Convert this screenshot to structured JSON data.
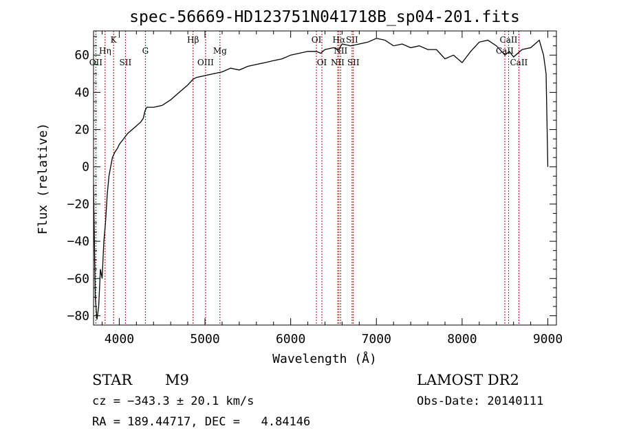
{
  "chart_data": {
    "type": "line",
    "title": "spec-56669-HD123751N041718B_sp04-201.fits",
    "xlabel": "Wavelength (Å)",
    "ylabel": "Flux (relative)",
    "xlim": [
      3700,
      9100
    ],
    "ylim": [
      -85,
      73
    ],
    "x_ticks": [
      4000,
      5000,
      6000,
      7000,
      8000,
      9000
    ],
    "y_ticks": [
      -80,
      -60,
      -40,
      -20,
      0,
      20,
      40,
      60
    ],
    "grid": false,
    "series": [
      {
        "x": [
          3700,
          3720,
          3740,
          3760,
          3780,
          3800,
          3820,
          3840,
          3860,
          3880,
          3900,
          3920,
          3950,
          3980,
          4000,
          4050,
          4100,
          4150,
          4200,
          4250,
          4280,
          4300,
          4320,
          4400,
          4500,
          4600,
          4700,
          4800,
          4860,
          4900,
          5000,
          5100,
          5200,
          5300,
          5400,
          5500,
          5600,
          5700,
          5800,
          5900,
          6000,
          6100,
          6200,
          6300,
          6350,
          6400,
          6500,
          6560,
          6600,
          6700,
          6800,
          6900,
          7000,
          7100,
          7200,
          7300,
          7400,
          7500,
          7600,
          7700,
          7800,
          7900,
          8000,
          8100,
          8200,
          8300,
          8400,
          8500,
          8550,
          8600,
          8700,
          8800,
          8850,
          8900,
          8950,
          8980,
          9000
        ],
        "y": [
          -10,
          -70,
          -82,
          -75,
          -55,
          -60,
          -40,
          -30,
          -15,
          -5,
          0,
          5,
          8,
          10,
          12,
          15,
          18,
          20,
          22,
          24,
          26,
          30,
          32,
          32,
          33,
          36,
          40,
          44,
          47,
          48,
          49,
          50,
          51,
          53,
          52,
          54,
          55,
          56,
          57,
          58,
          60,
          61,
          62,
          62,
          61,
          63,
          64,
          63,
          66,
          65,
          66,
          67,
          69,
          68,
          65,
          66,
          64,
          65,
          63,
          63,
          58,
          60,
          56,
          62,
          67,
          68,
          65,
          60,
          62,
          59,
          63,
          64,
          66,
          68,
          60,
          50,
          0
        ]
      }
    ],
    "spectral_lines": [
      {
        "name": "OII",
        "x": 3727,
        "pos": "lower"
      },
      {
        "name": "Hη",
        "x": 3835,
        "pos": "middle"
      },
      {
        "name": "K",
        "x": 3934,
        "pos": "upper"
      },
      {
        "name": "SII",
        "x": 4072,
        "pos": "lower"
      },
      {
        "name": "G",
        "x": 4305,
        "pos": "middle"
      },
      {
        "name": "Hβ",
        "x": 4861,
        "pos": "upper"
      },
      {
        "name": "OIII",
        "x": 5007,
        "pos": "lower"
      },
      {
        "name": "Mg",
        "x": 5175,
        "pos": "middle"
      },
      {
        "name": "OI",
        "x": 6300,
        "pos": "upper"
      },
      {
        "name": "OI",
        "x": 6364,
        "pos": "lower"
      },
      {
        "name": "NII",
        "x": 6548,
        "pos": "lower"
      },
      {
        "name": "Hα",
        "x": 6563,
        "pos": "upper"
      },
      {
        "name": "NII",
        "x": 6583,
        "pos": "middle"
      },
      {
        "name": "SII",
        "x": 6716,
        "pos": "upper"
      },
      {
        "name": "SII",
        "x": 6731,
        "pos": "lower"
      },
      {
        "name": "CaII",
        "x": 8498,
        "pos": "middle"
      },
      {
        "name": "CaII",
        "x": 8542,
        "pos": "upper"
      },
      {
        "name": "CaII",
        "x": 8662,
        "pos": "lower"
      }
    ]
  },
  "info": {
    "class": "STAR",
    "subclass": "M9",
    "survey": "LAMOST DR2",
    "cz": "cz = −343.3 ± 20.1 km/s",
    "obs_date": "Obs-Date: 20140111",
    "radec": "RA = 189.44717, DEC =   4.84146"
  }
}
